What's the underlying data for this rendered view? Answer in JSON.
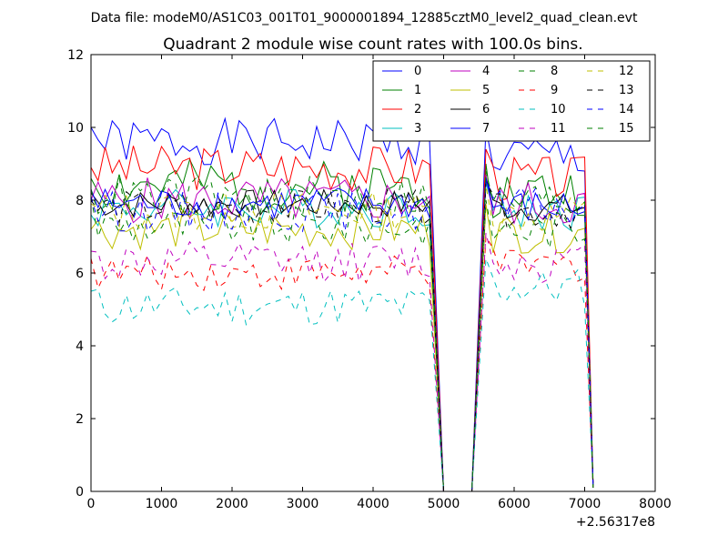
{
  "suptitle": "Data file: modeM0/AS1C03_001T01_9000001894_12885cztM0_level2_quad_clean.evt",
  "chart_data": {
    "type": "line",
    "title": "Quadrant 2 module wise count rates with 100.0s bins.",
    "xlabel": "",
    "ylabel": "",
    "xlim": [
      0,
      8000
    ],
    "ylim": [
      0,
      12
    ],
    "x_offset_label": "+2.56317e8",
    "xticks": [
      0,
      1000,
      2000,
      3000,
      4000,
      5000,
      6000,
      7000,
      8000
    ],
    "yticks": [
      0,
      2,
      4,
      6,
      8,
      10,
      12
    ],
    "grid": false,
    "legend_position": "top-right",
    "gap_segments": [
      {
        "x_start": 4800,
        "x_end": 5000
      },
      {
        "x_start": 5000,
        "x_end": 5400
      },
      {
        "x_start": 5400,
        "x_end": 5600
      },
      {
        "x_start": 7050,
        "x_end": 7120
      }
    ],
    "seg1_x_start": 0,
    "seg1_x_end": 4800,
    "seg2_x_start": 5600,
    "seg2_x_end": 7050,
    "x_step": 100,
    "series": [
      {
        "name": "0",
        "color": "#0000ff",
        "style": "solid",
        "mean1": 9.6,
        "mean2": 9.2,
        "amp": 0.4,
        "start": 10.0,
        "end": 0.1,
        "seed": 1
      },
      {
        "name": "1",
        "color": "#008000",
        "style": "solid",
        "mean1": 8.4,
        "mean2": 8.2,
        "amp": 0.45,
        "start": 8.6,
        "end": 0.1,
        "seed": 2
      },
      {
        "name": "2",
        "color": "#ff0000",
        "style": "solid",
        "mean1": 8.9,
        "mean2": 8.6,
        "amp": 0.4,
        "start": 8.9,
        "end": 0.2,
        "seed": 3
      },
      {
        "name": "3",
        "color": "#00bfbf",
        "style": "solid",
        "mean1": 7.8,
        "mean2": 7.7,
        "amp": 0.35,
        "start": 7.6,
        "end": 0.1,
        "seed": 4
      },
      {
        "name": "4",
        "color": "#bf00bf",
        "style": "solid",
        "mean1": 8.0,
        "mean2": 7.9,
        "amp": 0.4,
        "start": 8.0,
        "end": 0.1,
        "seed": 5
      },
      {
        "name": "5",
        "color": "#bfbf00",
        "style": "solid",
        "mean1": 7.2,
        "mean2": 7.1,
        "amp": 0.35,
        "start": 7.2,
        "end": 0.1,
        "seed": 6
      },
      {
        "name": "6",
        "color": "#000000",
        "style": "solid",
        "mean1": 7.9,
        "mean2": 7.8,
        "amp": 0.25,
        "start": 8.2,
        "end": 0.1,
        "seed": 7
      },
      {
        "name": "7",
        "color": "#0000ff",
        "style": "solid",
        "mean1": 7.9,
        "mean2": 7.8,
        "amp": 0.3,
        "start": 8.3,
        "end": 0.1,
        "seed": 8
      },
      {
        "name": "8",
        "color": "#008000",
        "style": "dashed",
        "mean1": 7.3,
        "mean2": 7.2,
        "amp": 0.35,
        "start": 8.1,
        "end": 0.1,
        "seed": 9
      },
      {
        "name": "9",
        "color": "#ff0000",
        "style": "dashed",
        "mean1": 6.0,
        "mean2": 6.2,
        "amp": 0.3,
        "start": 6.4,
        "end": 0.1,
        "seed": 10
      },
      {
        "name": "10",
        "color": "#00bfbf",
        "style": "dashed",
        "mean1": 5.1,
        "mean2": 5.6,
        "amp": 0.35,
        "start": 5.5,
        "end": 0.2,
        "seed": 11
      },
      {
        "name": "11",
        "color": "#bf00bf",
        "style": "dashed",
        "mean1": 6.3,
        "mean2": 6.3,
        "amp": 0.35,
        "start": 6.6,
        "end": 0.1,
        "seed": 12
      },
      {
        "name": "12",
        "color": "#bfbf00",
        "style": "dashed",
        "mean1": 7.7,
        "mean2": 7.6,
        "amp": 0.35,
        "start": 7.9,
        "end": 0.1,
        "seed": 13
      },
      {
        "name": "13",
        "color": "#000000",
        "style": "dashed",
        "mean1": 7.8,
        "mean2": 7.7,
        "amp": 0.3,
        "start": 8.0,
        "end": 0.1,
        "seed": 14
      },
      {
        "name": "14",
        "color": "#0000ff",
        "style": "dashed",
        "mean1": 7.7,
        "mean2": 7.8,
        "amp": 0.35,
        "start": 8.1,
        "end": 0.1,
        "seed": 15
      },
      {
        "name": "15",
        "color": "#008000",
        "style": "dashed",
        "mean1": 8.1,
        "mean2": 8.0,
        "amp": 0.35,
        "start": 8.3,
        "end": 0.1,
        "seed": 16
      }
    ]
  }
}
